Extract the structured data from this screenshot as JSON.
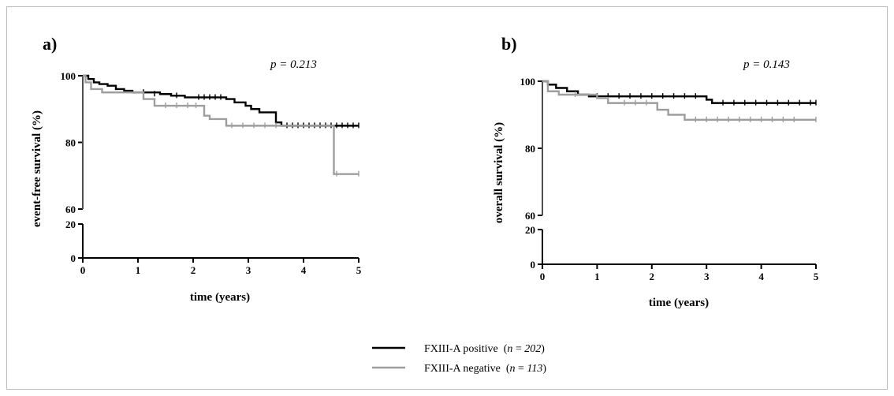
{
  "colors": {
    "positive": "#000000",
    "negative": "#9e9e9e"
  },
  "legend": {
    "items": [
      {
        "series": "positive",
        "label": "FXIII-A positive",
        "n_prefix": "(",
        "n_var": "n",
        "n_eq": " = ",
        "n_val": "202",
        "n_suffix": ")"
      },
      {
        "series": "negative",
        "label": "FXIII-A negative",
        "n_prefix": "(",
        "n_var": "n",
        "n_eq": " = ",
        "n_val": "113",
        "n_suffix": ")"
      }
    ]
  },
  "chart_data": [
    {
      "type": "line",
      "panel": "a)",
      "pvalue_text": "p = 0.213",
      "xlabel": "time (years)",
      "ylabel": "event-free survival (%)",
      "xlim": [
        0,
        5
      ],
      "ylim_upper": [
        60,
        100
      ],
      "ylim_lower": [
        0,
        20
      ],
      "xticks": [
        "0",
        "1",
        "2",
        "3",
        "4",
        "5"
      ],
      "yticks_upper": [
        "60",
        "80",
        "100"
      ],
      "yticks_lower": [
        "0",
        "20"
      ],
      "series": [
        {
          "key": "positive",
          "name": "FXIII-A positive",
          "x": [
            0,
            0.1,
            0.2,
            0.3,
            0.45,
            0.6,
            0.75,
            0.9,
            1.4,
            1.6,
            1.85,
            2.6,
            2.75,
            2.95,
            3.05,
            3.2,
            3.5,
            3.6,
            5.0
          ],
          "y": [
            100,
            99,
            98,
            97.5,
            97,
            96,
            95.5,
            95,
            94.5,
            94,
            93.5,
            93,
            92,
            91,
            90,
            89,
            86,
            85,
            85
          ],
          "censor_x": [
            1.1,
            1.3,
            1.7,
            2.1,
            2.2,
            2.3,
            2.4,
            2.5,
            3.7,
            3.8,
            3.9,
            4.0,
            4.1,
            4.2,
            4.3,
            4.4,
            4.5,
            4.6,
            4.7,
            4.8,
            4.9,
            5.0
          ],
          "censor_y": [
            95,
            94.5,
            94,
            93.5,
            93.5,
            93.5,
            93.5,
            93.5,
            85,
            85,
            85,
            85,
            85,
            85,
            85,
            85,
            85,
            85,
            85,
            85,
            85,
            85
          ]
        },
        {
          "key": "negative",
          "name": "FXIII-A negative",
          "x": [
            0,
            0.05,
            0.15,
            0.35,
            1.1,
            1.3,
            2.2,
            2.3,
            2.6,
            4.55,
            5.0
          ],
          "y": [
            100,
            98,
            96,
            95,
            93,
            91,
            88,
            87,
            85,
            70.5,
            70.5
          ],
          "censor_x": [
            1.5,
            1.7,
            1.9,
            2.05,
            2.7,
            2.9,
            3.1,
            3.3,
            3.5,
            4.6,
            5.0
          ],
          "censor_y": [
            91,
            91,
            91,
            91,
            85,
            85,
            85,
            85,
            85,
            70.5,
            70.5
          ]
        }
      ]
    },
    {
      "type": "line",
      "panel": "b)",
      "pvalue_text": "p = 0.143",
      "xlabel": "time (years)",
      "ylabel": "overall survival (%)",
      "xlim": [
        0,
        5
      ],
      "ylim_upper": [
        60,
        100
      ],
      "ylim_lower": [
        0,
        20
      ],
      "xticks": [
        "0",
        "1",
        "2",
        "3",
        "4",
        "5"
      ],
      "yticks_upper": [
        "60",
        "80",
        "100"
      ],
      "yticks_lower": [
        "0",
        "20"
      ],
      "series": [
        {
          "key": "positive",
          "name": "FXIII-A positive",
          "x": [
            0,
            0.1,
            0.25,
            0.45,
            0.65,
            0.85,
            3.0,
            3.1,
            5.0
          ],
          "y": [
            100,
            99,
            98,
            97,
            96,
            95.5,
            94.5,
            93.5,
            93.5
          ],
          "censor_x": [
            1.0,
            1.2,
            1.4,
            1.6,
            1.8,
            2.0,
            2.2,
            2.4,
            2.6,
            2.8,
            3.3,
            3.5,
            3.7,
            3.9,
            4.1,
            4.3,
            4.5,
            4.7,
            4.9,
            5.0
          ],
          "censor_y": [
            95.5,
            95.5,
            95.5,
            95.5,
            95.5,
            95.5,
            95.5,
            95.5,
            95.5,
            95.5,
            93.5,
            93.5,
            93.5,
            93.5,
            93.5,
            93.5,
            93.5,
            93.5,
            93.5,
            93.5
          ]
        },
        {
          "key": "negative",
          "name": "FXIII-A negative",
          "x": [
            0,
            0.1,
            0.3,
            1.0,
            1.2,
            2.1,
            2.3,
            2.6,
            5.0
          ],
          "y": [
            100,
            97,
            96,
            95,
            93.5,
            91.5,
            90,
            88.5,
            88.5
          ],
          "censor_x": [
            0.6,
            1.5,
            1.7,
            1.9,
            2.8,
            3.0,
            3.2,
            3.4,
            3.6,
            3.8,
            4.0,
            4.2,
            4.4,
            4.6,
            5.0
          ],
          "censor_y": [
            96,
            93.5,
            93.5,
            93.5,
            88.5,
            88.5,
            88.5,
            88.5,
            88.5,
            88.5,
            88.5,
            88.5,
            88.5,
            88.5,
            88.5
          ]
        }
      ]
    }
  ]
}
